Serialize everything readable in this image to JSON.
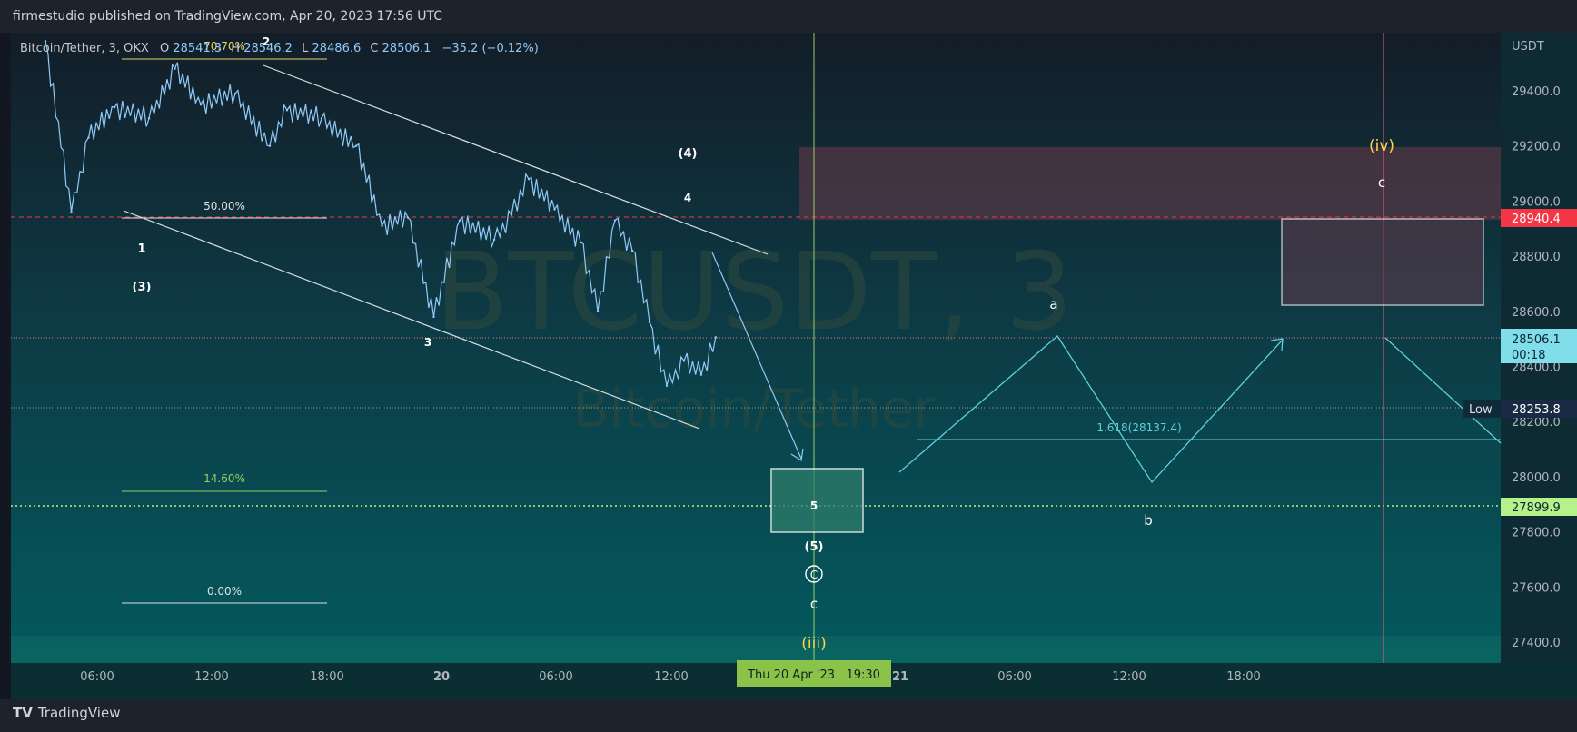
{
  "header": {
    "publish_line": "firmestudio published on TradingView.com, Apr 20, 2023 17:56 UTC"
  },
  "footer": {
    "brand_mark": "TV",
    "brand_name": "TradingView"
  },
  "legend": {
    "symbol": "Bitcoin/Tether, 3, OKX",
    "o_label": "O",
    "o_value": "28541.3",
    "h_label": "H",
    "h_value": "28546.2",
    "l_label": "L",
    "l_value": "28486.6",
    "c_label": "C",
    "c_value": "28506.1",
    "change": "−35.2 (−0.12%)"
  },
  "watermark": {
    "ticker": "BTCUSDT, 3",
    "name": "Bitcoin/Tether"
  },
  "price_axis": {
    "currency": "USDT",
    "ticks": [
      "29400.0",
      "29200.0",
      "29000.0",
      "28800.0",
      "28600.0",
      "28400.0",
      "28200.0",
      "28000.0",
      "27800.0",
      "27600.0",
      "27400.0"
    ],
    "resistance_tag": "28940.4",
    "last_price_tag": "28506.1",
    "countdown": "00:18",
    "low_label": "Low",
    "low_tag": "28253.8",
    "target_tag": "27899.9"
  },
  "time_axis": {
    "ticks": [
      "06:00",
      "12:00",
      "18:00",
      "20",
      "06:00",
      "12:00",
      "21",
      "06:00",
      "12:00",
      "18:00"
    ],
    "cursor_label": "Thu 20 Apr '23   19:30"
  },
  "fib_labels": {
    "f707": "70.70%",
    "f50": "50.00%",
    "f146": "14.60%",
    "f0": "0.00%",
    "ext": "1.618(28137.4)"
  },
  "wave_labels": {
    "w1": "1",
    "w2": "2",
    "w3": "3",
    "w4": "4",
    "w5": "5",
    "wp3": "(3)",
    "wp4": "(4)",
    "wp5": "(5)",
    "circled_c": "C",
    "small_c_bottom": "c",
    "iii": "(iii)",
    "iv": "(iv)",
    "proj_a": "a",
    "proj_b": "b",
    "proj_c": "c"
  },
  "colors": {
    "background_top": "#131d28",
    "background_bottom": "#035a5e",
    "price_line": "#90caf9",
    "channel": "#d8dde3",
    "resistance": "#f23645",
    "target_zone": "#26a69a",
    "projection": "#5fd0dc",
    "wave_yellow": "#ffd54f",
    "last_price": "#80deea"
  },
  "chart_data": {
    "type": "line",
    "title": "Bitcoin/Tether, 3, OKX",
    "xlabel": "",
    "ylabel": "USDT",
    "ylim": [
      27320,
      29640
    ],
    "x": [
      "Apr 19 03:00",
      "Apr 19 04:30",
      "Apr 19 05:30",
      "Apr 19 07:00",
      "Apr 19 09:00",
      "Apr 19 10:30",
      "Apr 19 12:00",
      "Apr 19 14:00",
      "Apr 19 16:00",
      "Apr 19 17:00",
      "Apr 19 19:00",
      "Apr 19 21:00",
      "Apr 19 22:30",
      "Apr 20 00:00",
      "Apr 20 01:30",
      "Apr 20 03:00",
      "Apr 20 05:00",
      "Apr 20 06:00",
      "Apr 20 07:00",
      "Apr 20 08:30",
      "Apr 20 10:00",
      "Apr 20 11:00",
      "Apr 20 12:00",
      "Apr 20 13:00",
      "Apr 20 14:00",
      "Apr 20 15:00",
      "Apr 20 16:00",
      "Apr 20 17:00",
      "Apr 20 17:50"
    ],
    "series": [
      {
        "values": [
          29580,
          28960,
          29230,
          29340,
          29300,
          29480,
          29350,
          29390,
          29200,
          29330,
          29300,
          29200,
          28910,
          28940,
          28580,
          28930,
          28860,
          28950,
          29080,
          28970,
          28850,
          28600,
          28930,
          28820,
          28560,
          28330,
          28420,
          28370,
          28506
        ]
      }
    ],
    "grid": false
  }
}
